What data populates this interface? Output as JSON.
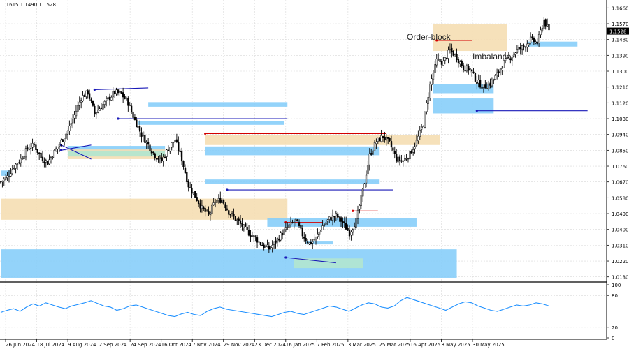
{
  "header": {
    "ohlc_text": "1.1615 1.1490 1.1528"
  },
  "annotations": {
    "order_block": "Order-block",
    "imbalance": "Imbalance"
  },
  "last_price_label": "1.1528",
  "colors": {
    "zone_blue": "#87cefa",
    "zone_peach": "#f5deb3",
    "zone_green": "#b2e6cf",
    "red_line": "#d40000",
    "blue_line": "#1a1ab8",
    "candle": "#000000",
    "indicator": "#1e90ff",
    "price_box": "#000000"
  },
  "chart_data": [
    {
      "type": "candlestick",
      "title": "",
      "price_ticks": [
        "1.1660",
        "1.1570",
        "1.1480",
        "1.1390",
        "1.1300",
        "1.1210",
        "1.1120",
        "1.1030",
        "1.0940",
        "1.0850",
        "1.0760",
        "1.0670",
        "1.0580",
        "1.0490",
        "1.0400",
        "1.0310",
        "1.0220",
        "1.0130"
      ],
      "ylim": [
        1.0105,
        1.1705
      ],
      "date_ticks": [
        "26 Jun 2024",
        "18 Jul 2024",
        "9 Aug 2024",
        "2 Sep 2024",
        "24 Sep 2024",
        "16 Oct 2024",
        "7 Nov 2024",
        "29 Nov 2024",
        "23 Dec 2024",
        "16 Jan 2025",
        "7 Feb 2025",
        "3 Mar 2025",
        "25 Mar 2025",
        "16 Apr 2025",
        "8 May 2025",
        "30 May 2025"
      ],
      "grid": true,
      "last_price": 1.1528,
      "close_path": [
        [
          0,
          1.067
        ],
        [
          4,
          1.07
        ],
        [
          8,
          1.076
        ],
        [
          12,
          1.08
        ],
        [
          16,
          1.086
        ],
        [
          20,
          1.088
        ],
        [
          24,
          1.081
        ],
        [
          28,
          1.078
        ],
        [
          32,
          1.084
        ],
        [
          36,
          1.09
        ],
        [
          40,
          1.096
        ],
        [
          44,
          1.105
        ],
        [
          48,
          1.115
        ],
        [
          52,
          1.118
        ],
        [
          56,
          1.106
        ],
        [
          60,
          1.11
        ],
        [
          64,
          1.114
        ],
        [
          68,
          1.118
        ],
        [
          72,
          1.117
        ],
        [
          76,
          1.112
        ],
        [
          80,
          1.102
        ],
        [
          84,
          1.094
        ],
        [
          88,
          1.088
        ],
        [
          92,
          1.082
        ],
        [
          96,
          1.079
        ],
        [
          100,
          1.086
        ],
        [
          104,
          1.091
        ],
        [
          108,
          1.08
        ],
        [
          112,
          1.065
        ],
        [
          116,
          1.059
        ],
        [
          120,
          1.052
        ],
        [
          124,
          1.048
        ],
        [
          128,
          1.056
        ],
        [
          132,
          1.057
        ],
        [
          136,
          1.05
        ],
        [
          140,
          1.046
        ],
        [
          144,
          1.042
        ],
        [
          148,
          1.038
        ],
        [
          152,
          1.035
        ],
        [
          156,
          1.031
        ],
        [
          160,
          1.029
        ],
        [
          164,
          1.033
        ],
        [
          168,
          1.038
        ],
        [
          172,
          1.042
        ],
        [
          176,
          1.045
        ],
        [
          180,
          1.037
        ],
        [
          184,
          1.032
        ],
        [
          188,
          1.035
        ],
        [
          192,
          1.042
        ],
        [
          196,
          1.046
        ],
        [
          200,
          1.048
        ],
        [
          204,
          1.044
        ],
        [
          208,
          1.038
        ],
        [
          212,
          1.045
        ],
        [
          216,
          1.062
        ],
        [
          220,
          1.082
        ],
        [
          224,
          1.09
        ],
        [
          228,
          1.093
        ],
        [
          232,
          1.089
        ],
        [
          236,
          1.08
        ],
        [
          240,
          1.079
        ],
        [
          244,
          1.083
        ],
        [
          248,
          1.09
        ],
        [
          252,
          1.1
        ],
        [
          256,
          1.122
        ],
        [
          260,
          1.136
        ],
        [
          264,
          1.135
        ],
        [
          268,
          1.142
        ],
        [
          272,
          1.138
        ],
        [
          276,
          1.132
        ],
        [
          280,
          1.131
        ],
        [
          284,
          1.124
        ],
        [
          288,
          1.121
        ],
        [
          292,
          1.123
        ],
        [
          296,
          1.128
        ],
        [
          300,
          1.135
        ],
        [
          304,
          1.138
        ],
        [
          308,
          1.142
        ],
        [
          312,
          1.144
        ],
        [
          316,
          1.148
        ],
        [
          320,
          1.146
        ],
        [
          324,
          1.159
        ],
        [
          327,
          1.1528
        ]
      ],
      "zones": [
        {
          "color": "blue",
          "x0": 88,
          "x1": 171,
          "y_hi": 1.1124,
          "y_lo": 1.1098
        },
        {
          "color": "blue",
          "x0": 82,
          "x1": 169,
          "y_hi": 1.1015,
          "y_lo": 1.0995
        },
        {
          "color": "blue",
          "x0": 40,
          "x1": 98,
          "y_hi": 1.0875,
          "y_lo": 1.0815
        },
        {
          "color": "peach",
          "x0": 40,
          "x1": 98,
          "y_hi": 1.0855,
          "y_lo": 1.08
        },
        {
          "color": "green",
          "x0": 40,
          "x1": 98,
          "y_hi": 1.0845,
          "y_lo": 1.0815
        },
        {
          "color": "blue",
          "x0": 0,
          "x1": 6,
          "y_hi": 1.0735,
          "y_lo": 1.0705
        },
        {
          "color": "blue",
          "x0": 122,
          "x1": 226,
          "y_hi": 1.0872,
          "y_lo": 1.0822
        },
        {
          "color": "peach",
          "x0": 122,
          "x1": 262,
          "y_hi": 1.0935,
          "y_lo": 1.088
        },
        {
          "color": "blue",
          "x0": 122,
          "x1": 226,
          "y_hi": 1.0684,
          "y_lo": 1.0658
        },
        {
          "color": "peach",
          "x0": 0,
          "x1": 171,
          "y_hi": 1.0575,
          "y_lo": 1.0455
        },
        {
          "color": "blue",
          "x0": 159,
          "x1": 248,
          "y_hi": 1.0465,
          "y_lo": 1.0415
        },
        {
          "color": "blue",
          "x0": 182,
          "x1": 198,
          "y_hi": 1.0335,
          "y_lo": 1.0315
        },
        {
          "color": "blue",
          "x0": 0,
          "x1": 272,
          "y_hi": 1.0287,
          "y_lo": 1.0125
        },
        {
          "color": "green",
          "x0": 175,
          "x1": 216,
          "y_hi": 1.0235,
          "y_lo": 1.018
        },
        {
          "color": "peach",
          "x0": 258,
          "x1": 302,
          "y_hi": 1.157,
          "y_lo": 1.1415
        },
        {
          "color": "blue",
          "x0": 314,
          "x1": 344,
          "y_hi": 1.1468,
          "y_lo": 1.144
        },
        {
          "color": "blue",
          "x0": 258,
          "x1": 294,
          "y_hi": 1.1225,
          "y_lo": 1.1175
        },
        {
          "color": "blue",
          "x0": 258,
          "x1": 294,
          "y_hi": 1.1145,
          "y_lo": 1.106
        }
      ],
      "lines": [
        {
          "color": "red",
          "x0": 122,
          "x1": 230,
          "y0": 1.0945,
          "y1": 1.0945
        },
        {
          "color": "blue",
          "x0": 70,
          "x1": 171,
          "y0": 1.103,
          "y1": 1.103
        },
        {
          "color": "blue",
          "x0": 135,
          "x1": 234,
          "y0": 1.0625,
          "y1": 1.0625
        },
        {
          "color": "blue",
          "x0": 284,
          "x1": 350,
          "y0": 1.1075,
          "y1": 1.1075
        },
        {
          "color": "red",
          "x0": 260,
          "x1": 281,
          "y0": 1.1475,
          "y1": 1.1475
        },
        {
          "color": "red",
          "x0": 170,
          "x1": 192,
          "y0": 1.044,
          "y1": 1.044
        },
        {
          "color": "red",
          "x0": 210,
          "x1": 225,
          "y0": 1.0505,
          "y1": 1.0505
        },
        {
          "color": "blue",
          "x0": 56,
          "x1": 88,
          "y0": 1.1195,
          "y1": 1.1205
        },
        {
          "color": "blue",
          "x0": 36,
          "x1": 54,
          "y0": 1.085,
          "y1": 1.088
        },
        {
          "color": "blue",
          "x0": 36,
          "x1": 54,
          "y0": 1.088,
          "y1": 1.08
        },
        {
          "color": "blue",
          "x0": 170,
          "x1": 200,
          "y0": 1.024,
          "y1": 1.021
        }
      ]
    },
    {
      "type": "line",
      "title": "",
      "ylim": [
        0,
        100
      ],
      "ticks": [
        "100",
        "80",
        "20",
        "0"
      ],
      "values": [
        48,
        52,
        55,
        50,
        58,
        64,
        60,
        66,
        62,
        58,
        55,
        60,
        63,
        66,
        70,
        65,
        60,
        58,
        52,
        55,
        60,
        62,
        58,
        54,
        50,
        46,
        42,
        40,
        45,
        48,
        44,
        42,
        50,
        55,
        58,
        54,
        52,
        50,
        48,
        46,
        44,
        42,
        40,
        44,
        48,
        50,
        46,
        44,
        48,
        52,
        56,
        60,
        58,
        54,
        50,
        56,
        62,
        66,
        64,
        58,
        56,
        60,
        70,
        76,
        72,
        68,
        64,
        60,
        56,
        52,
        58,
        64,
        68,
        66,
        60,
        56,
        52,
        50,
        54,
        58,
        62,
        60,
        62,
        66,
        64,
        60
      ]
    }
  ]
}
